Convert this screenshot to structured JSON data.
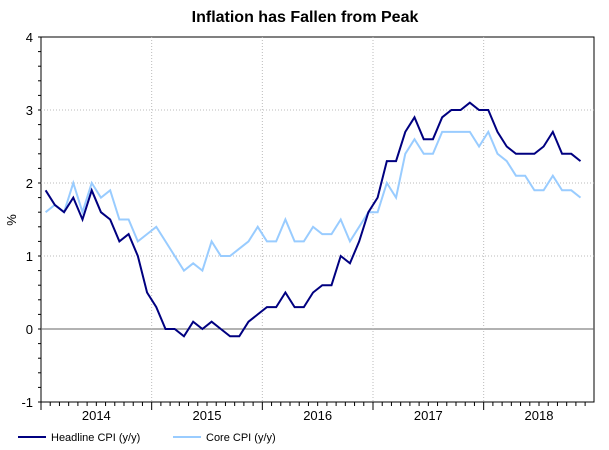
{
  "chart_data": {
    "type": "line",
    "title": "Inflation has Fallen from Peak",
    "ylabel": "%",
    "xlabel": "",
    "ylim": [
      -1,
      4
    ],
    "yticks": [
      -1,
      0,
      1,
      2,
      3,
      4
    ],
    "x_start": "2014-01",
    "x_frequency": "monthly",
    "xtick_labels": [
      "2014",
      "2015",
      "2016",
      "2017",
      "2018"
    ],
    "grid": true,
    "legend_placement": "bottom",
    "series": [
      {
        "name": "Headline CPI (y/y)",
        "color": "#000080",
        "values": [
          1.9,
          1.7,
          1.6,
          1.8,
          1.5,
          1.9,
          1.6,
          1.5,
          1.2,
          1.3,
          1.0,
          0.5,
          0.3,
          0.0,
          0.0,
          -0.1,
          0.1,
          0.0,
          0.1,
          0.0,
          -0.1,
          -0.1,
          0.1,
          0.2,
          0.3,
          0.3,
          0.5,
          0.3,
          0.3,
          0.5,
          0.6,
          0.6,
          1.0,
          0.9,
          1.2,
          1.6,
          1.8,
          2.3,
          2.3,
          2.7,
          2.9,
          2.6,
          2.6,
          2.9,
          3.0,
          3.0,
          3.1,
          3.0,
          3.0,
          2.7,
          2.5,
          2.4,
          2.4,
          2.4,
          2.5,
          2.7,
          2.4,
          2.4,
          2.3
        ]
      },
      {
        "name": "Core CPI (y/y)",
        "color": "#99ccff",
        "values": [
          1.6,
          1.7,
          1.6,
          2.0,
          1.6,
          2.0,
          1.8,
          1.9,
          1.5,
          1.5,
          1.2,
          1.3,
          1.4,
          1.2,
          1.0,
          0.8,
          0.9,
          0.8,
          1.2,
          1.0,
          1.0,
          1.1,
          1.2,
          1.4,
          1.2,
          1.2,
          1.5,
          1.2,
          1.2,
          1.4,
          1.3,
          1.3,
          1.5,
          1.2,
          1.4,
          1.6,
          1.6,
          2.0,
          1.8,
          2.4,
          2.6,
          2.4,
          2.4,
          2.7,
          2.7,
          2.7,
          2.7,
          2.5,
          2.7,
          2.4,
          2.3,
          2.1,
          2.1,
          1.9,
          1.9,
          2.1,
          1.9,
          1.9,
          1.8
        ]
      }
    ]
  }
}
